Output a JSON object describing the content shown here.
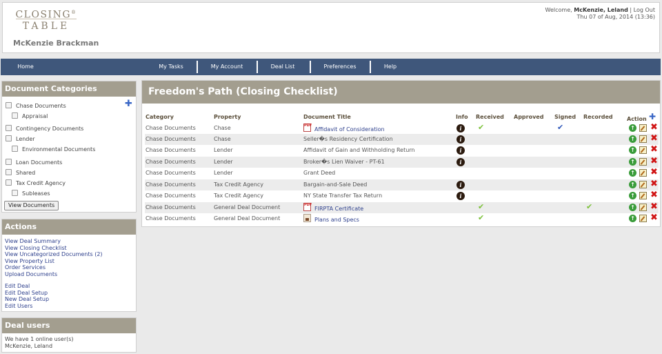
{
  "header": {
    "logo_line1": "CLOSING",
    "logo_reg": "®",
    "logo_line2": "TABLE",
    "user_name": "McKenzie Brackman",
    "welcome_prefix": "Welcome,",
    "welcome_user": "McKenzie, Leland",
    "separator": "|",
    "logout": "Log Out",
    "datetime": "Thu 07 of Aug, 2014 (13:36)"
  },
  "nav": [
    "Home",
    "My Tasks",
    "My Account",
    "Deal List",
    "Preferences",
    "Help"
  ],
  "categories": {
    "title": "Document Categories",
    "add_icon": "plus-icon",
    "items": [
      {
        "label": "Chase Documents",
        "indent": false
      },
      {
        "label": "Appraisal",
        "indent": true
      },
      {
        "label": "Contingency Documents",
        "indent": false
      },
      {
        "label": "Lender",
        "indent": false
      },
      {
        "label": "Environmental Documents",
        "indent": true
      },
      {
        "label": "Loan Documents",
        "indent": false
      },
      {
        "label": "Shared",
        "indent": false
      },
      {
        "label": "Tax Credit Agency",
        "indent": false
      },
      {
        "label": "Subleases",
        "indent": true
      }
    ],
    "view_button": "View Documents"
  },
  "actions": {
    "title": "Actions",
    "group1": [
      "View Deal Summary",
      "View Closing Checklist",
      "View Uncategorized Documents (2)",
      "View Property List",
      "Order Services",
      "Upload Documents"
    ],
    "group2": [
      "Edit Deal",
      "Edit Deal Setup",
      "New Deal Setup",
      "Edit Users"
    ]
  },
  "deal_users": {
    "title": "Deal users",
    "online_text": "We have 1 online user(s)",
    "users": [
      "McKenzie, Leland"
    ]
  },
  "checklist": {
    "title": "Freedom's Path (Closing Checklist)",
    "columns": {
      "category": "Category",
      "property": "Property",
      "document_title": "Document Title",
      "info": "Info",
      "received": "Received",
      "approved": "Approved",
      "signed": "Signed",
      "recorded": "Recorded",
      "action": "Action"
    },
    "rows": [
      {
        "category": "Chase Documents",
        "property": "Chase",
        "title": "Affidavit of Consideration",
        "file_icon": "pdf",
        "linked": true,
        "info": true,
        "received": true,
        "approved": false,
        "signed": true,
        "recorded": false
      },
      {
        "category": "Chase Documents",
        "property": "Chase",
        "title": "Seller�s Residency Certification",
        "file_icon": "",
        "linked": false,
        "info": true,
        "received": false,
        "approved": false,
        "signed": false,
        "recorded": false
      },
      {
        "category": "Chase Documents",
        "property": "Lender",
        "title": "Affidavit of Gain and Withholding Return",
        "file_icon": "",
        "linked": false,
        "info": true,
        "received": false,
        "approved": false,
        "signed": false,
        "recorded": false
      },
      {
        "category": "Chase Documents",
        "property": "Lender",
        "title": "Broker�s Lien Waiver - PT-61",
        "file_icon": "",
        "linked": false,
        "info": true,
        "received": false,
        "approved": false,
        "signed": false,
        "recorded": false
      },
      {
        "category": "Chase Documents",
        "property": "Lender",
        "title": "Grant Deed",
        "file_icon": "",
        "linked": false,
        "info": false,
        "received": false,
        "approved": false,
        "signed": false,
        "recorded": false
      },
      {
        "category": "Chase Documents",
        "property": "Tax Credit Agency",
        "title": "Bargain-and-Sale Deed",
        "file_icon": "",
        "linked": false,
        "info": true,
        "received": false,
        "approved": false,
        "signed": false,
        "recorded": false
      },
      {
        "category": "Chase Documents",
        "property": "Tax Credit Agency",
        "title": "NY State Transfer Tax Return",
        "file_icon": "",
        "linked": false,
        "info": true,
        "received": false,
        "approved": false,
        "signed": false,
        "recorded": false
      },
      {
        "category": "Chase Documents",
        "property": "General Deal Document",
        "title": "FIRPTA Certificate",
        "file_icon": "pdf",
        "linked": true,
        "info": false,
        "received": true,
        "approved": false,
        "signed": false,
        "recorded": true
      },
      {
        "category": "Chase Documents",
        "property": "General Deal Document",
        "title": "Plans and Specs",
        "file_icon": "image",
        "linked": true,
        "info": false,
        "received": true,
        "approved": false,
        "signed": false,
        "recorded": false
      }
    ],
    "glyphs": {
      "info": "i",
      "check": "✔",
      "up": "↑",
      "delete": "✖",
      "add": "✚",
      "pdf": "PDF"
    }
  },
  "colors": {
    "nav_bg": "#3f577b",
    "panel_head": "#a39e8f",
    "check_green": "#7cc13a",
    "check_blue": "#2a54b8",
    "delete_red": "#d01414",
    "link": "#2d3f8c"
  }
}
